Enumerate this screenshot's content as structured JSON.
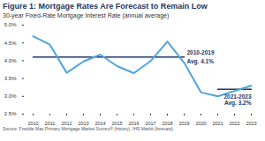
{
  "chart_data": {
    "type": "line",
    "title": "Figure 1: Mortgage Rates Are Forecast to Remain Low",
    "subtitle": "30-year Fixed-Rate Mortgage Interest Rate (annual average)",
    "caption": "Source: Freddie Mac Primary Mortgage Market Survey® (history), IHS Markit (forecast)",
    "categories": [
      "2010",
      "2011",
      "2012",
      "2013",
      "2014",
      "2015",
      "2016",
      "2017",
      "2018",
      "2019",
      "2020",
      "2021",
      "2022",
      "2023"
    ],
    "values": [
      4.69,
      4.45,
      3.66,
      3.98,
      4.17,
      3.85,
      3.65,
      3.99,
      4.54,
      3.94,
      3.11,
      3.0,
      3.15,
      3.3
    ],
    "color": "#4ea6dc",
    "ylim": [
      2.5,
      5.0
    ],
    "yticks": [
      {
        "value": 2.5,
        "label": "2.5%"
      },
      {
        "value": 3.0,
        "label": "3.0%"
      },
      {
        "value": 3.5,
        "label": "3.5%"
      },
      {
        "value": 4.0,
        "label": "4.0%"
      },
      {
        "value": 4.5,
        "label": "4.5%"
      },
      {
        "value": 5.0,
        "label": "5.0%"
      }
    ],
    "grid": false,
    "reference_lines": [
      {
        "value": 4.1,
        "x": [
          "2010",
          "2019"
        ],
        "text": [
          "2010-2019",
          "Avg. 4.1%"
        ],
        "color": "#1f3864"
      },
      {
        "value": 3.2,
        "x": [
          "2021",
          "2023"
        ],
        "text": [
          "2021-2023",
          "Avg. 3.2%"
        ],
        "color": "#1f3864"
      }
    ]
  }
}
